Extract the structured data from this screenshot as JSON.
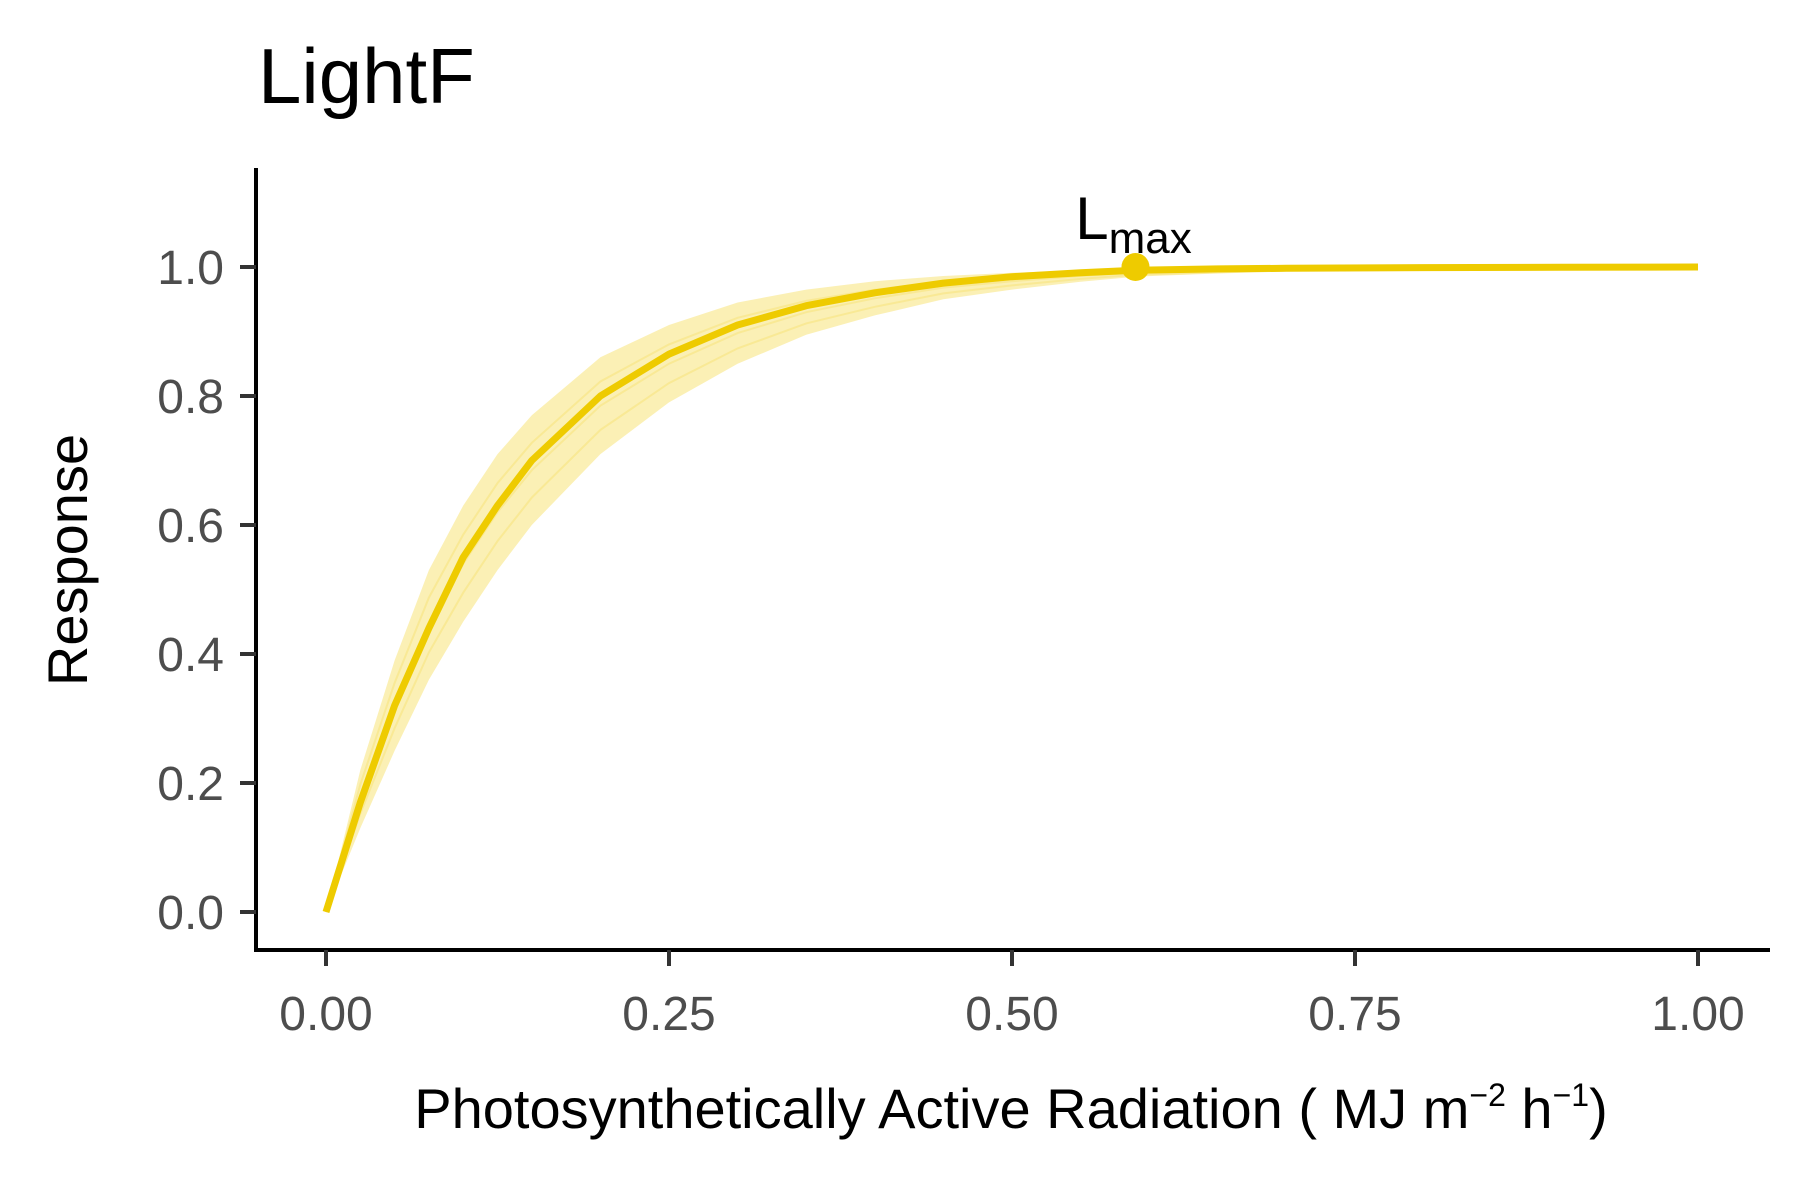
{
  "chart_data": {
    "type": "line",
    "title": "LightF",
    "xlabel": {
      "main": "Photosynthetically Active Radiation ( MJ m",
      "exp1": "−2",
      "mid": " h",
      "exp2": "−1",
      "end": ")"
    },
    "ylabel": "Response",
    "xlim": [
      -0.05,
      1.05
    ],
    "ylim": [
      -0.05,
      1.15
    ],
    "x_ticks": [
      0,
      0.25,
      0.5,
      0.75,
      1.0
    ],
    "x_tick_labels": [
      "0.00",
      "0.25",
      "0.50",
      "0.75",
      "1.00"
    ],
    "y_ticks": [
      0,
      0.2,
      0.4,
      0.6,
      0.8,
      1.0
    ],
    "y_tick_labels": [
      "0.0",
      "0.2",
      "0.4",
      "0.6",
      "0.8",
      "1.0"
    ],
    "grid": false,
    "legend": "none",
    "color": "#EECB00",
    "band_color": "#F6DD5A",
    "series": [
      {
        "role": "central",
        "x": [
          0,
          0.025,
          0.05,
          0.075,
          0.1,
          0.125,
          0.15,
          0.2,
          0.25,
          0.3,
          0.35,
          0.4,
          0.45,
          0.5,
          0.55,
          0.59,
          0.65,
          0.7,
          0.8,
          0.9,
          1.0
        ],
        "y": [
          0,
          0.17,
          0.32,
          0.44,
          0.55,
          0.63,
          0.7,
          0.8,
          0.865,
          0.91,
          0.94,
          0.96,
          0.975,
          0.985,
          0.991,
          0.995,
          0.997,
          0.998,
          0.999,
          0.9995,
          1.0
        ]
      },
      {
        "role": "band-upper",
        "x": [
          0,
          0.025,
          0.05,
          0.075,
          0.1,
          0.125,
          0.15,
          0.2,
          0.25,
          0.3,
          0.35,
          0.4,
          0.45,
          0.5,
          0.55,
          0.59,
          0.65,
          0.7,
          0.8,
          0.9,
          1.0
        ],
        "y": [
          0,
          0.22,
          0.39,
          0.53,
          0.63,
          0.71,
          0.77,
          0.86,
          0.91,
          0.945,
          0.965,
          0.978,
          0.986,
          0.991,
          0.995,
          0.997,
          0.998,
          0.999,
          0.9995,
          1.0,
          1.0
        ]
      },
      {
        "role": "band-lower",
        "x": [
          0,
          0.025,
          0.05,
          0.075,
          0.1,
          0.125,
          0.15,
          0.2,
          0.25,
          0.3,
          0.35,
          0.4,
          0.45,
          0.5,
          0.55,
          0.59,
          0.65,
          0.7,
          0.8,
          0.9,
          1.0
        ],
        "y": [
          0,
          0.13,
          0.25,
          0.36,
          0.45,
          0.53,
          0.6,
          0.71,
          0.79,
          0.85,
          0.895,
          0.925,
          0.95,
          0.965,
          0.977,
          0.985,
          0.99,
          0.993,
          0.997,
          0.999,
          1.0
        ]
      }
    ],
    "annotations": [
      {
        "label_main": "L",
        "label_sub": "max",
        "x": 0.59,
        "y": 1.0
      }
    ]
  }
}
